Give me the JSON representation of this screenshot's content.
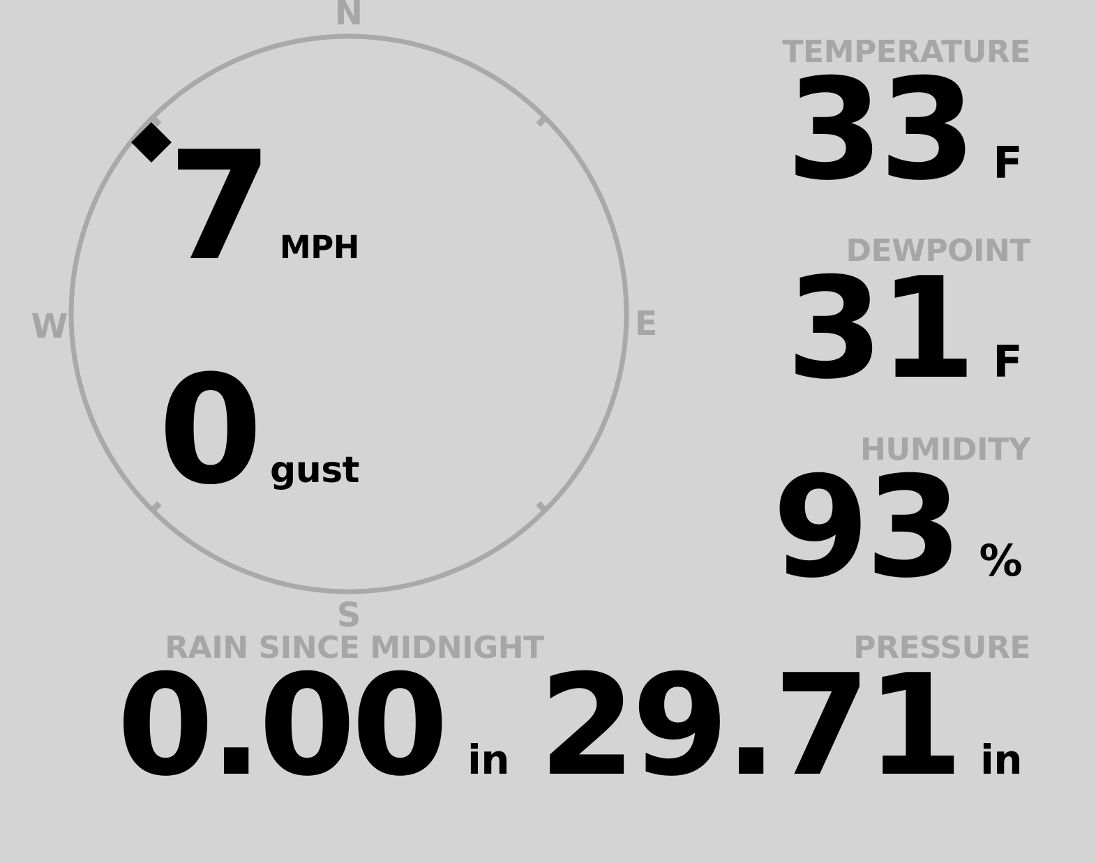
{
  "theme": {
    "background": "#d4d4d4",
    "muted_gray": "#a6a6a6",
    "value_black": "#000000"
  },
  "wind": {
    "speed": {
      "value": "7",
      "unit": "MPH"
    },
    "gust": {
      "value": "0",
      "unit": "gust"
    },
    "compass": {
      "north": "N",
      "east": "E",
      "south": "S",
      "west": "W",
      "direction_deg": 311
    }
  },
  "metrics": {
    "temperature": {
      "label": "TEMPERATURE",
      "value": "33",
      "unit": "F"
    },
    "dewpoint": {
      "label": "DEWPOINT",
      "value": "31",
      "unit": "F"
    },
    "humidity": {
      "label": "HUMIDITY",
      "value": "93",
      "unit": "%"
    },
    "rain": {
      "label": "RAIN SINCE MIDNIGHT",
      "value": "0.00",
      "unit": "in"
    },
    "pressure": {
      "label": "PRESSURE",
      "value": "29.71",
      "unit": "in"
    }
  }
}
